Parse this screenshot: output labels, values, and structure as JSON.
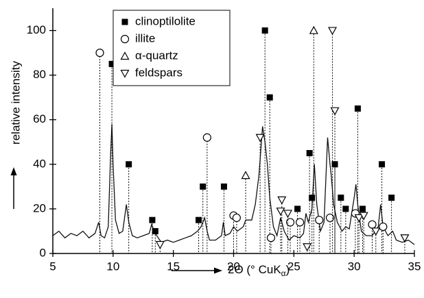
{
  "chart_data": {
    "type": "xrd",
    "xlabel_parts": [
      "2Θ (° CuK",
      "α",
      ")"
    ],
    "ylabel": "relative intensity",
    "xlim": [
      5,
      35
    ],
    "xticks": [
      5,
      10,
      15,
      20,
      25,
      30,
      35
    ],
    "ylim": [
      0,
      110
    ],
    "yticks": [
      0,
      20,
      40,
      60,
      80,
      100
    ],
    "legend": "upper center",
    "pattern": {
      "color": "#111111",
      "x": [
        5,
        5.5,
        6,
        6.5,
        7,
        7.5,
        8,
        8.5,
        8.8,
        9.0,
        9.3,
        9.6,
        9.8,
        9.9,
        10.0,
        10.2,
        10.5,
        10.8,
        11.1,
        11.3,
        11.6,
        12,
        12.5,
        13,
        13.2,
        13.5,
        14,
        14.5,
        15,
        15.5,
        16,
        16.5,
        17,
        17.3,
        17.6,
        17.8,
        18,
        18.5,
        19,
        19.15,
        19.3,
        19.7,
        20,
        20.3,
        20.8,
        21,
        21.5,
        21.8,
        22.1,
        22.4,
        22.6,
        22.8,
        23,
        23.3,
        23.6,
        23.9,
        24.2,
        24.6,
        25,
        25.5,
        25.8,
        26,
        26.2,
        26.5,
        26.7,
        26.9,
        27.2,
        27.5,
        27.8,
        28,
        28.1,
        28.3,
        28.6,
        29,
        29.3,
        29.6,
        30,
        30.15,
        30.3,
        30.6,
        31,
        31.5,
        32,
        32.2,
        32.4,
        32.8,
        33.2,
        33.5,
        34,
        34.5,
        35
      ],
      "values": [
        8,
        10,
        7,
        9,
        8,
        10,
        7,
        9,
        14,
        8,
        7,
        12,
        45,
        58,
        40,
        15,
        9,
        10,
        22,
        14,
        8,
        7,
        8,
        9,
        13,
        9,
        5,
        6,
        5,
        6,
        7,
        8,
        10,
        12,
        16,
        10,
        6,
        6,
        8,
        14,
        8,
        9,
        12,
        10,
        12,
        15,
        15,
        22,
        35,
        57,
        50,
        40,
        25,
        12,
        8,
        16,
        10,
        6,
        8,
        7,
        9,
        18,
        14,
        20,
        40,
        22,
        10,
        14,
        52,
        40,
        35,
        22,
        14,
        10,
        12,
        11,
        25,
        31,
        22,
        10,
        8,
        8,
        12,
        22,
        12,
        8,
        10,
        6,
        5,
        6,
        4
      ]
    },
    "series": [
      {
        "name": "clinoptilolite",
        "marker": "square",
        "color": "#000000",
        "x": [
          9.9,
          11.3,
          13.25,
          13.5,
          17.1,
          17.45,
          19.2,
          22.6,
          23.0,
          25.3,
          26.3,
          26.5,
          28.4,
          28.9,
          29.3,
          30.3,
          30.7,
          32.3,
          33.1
        ],
        "values": [
          85,
          40,
          15,
          10,
          15,
          30,
          30,
          100,
          70,
          20,
          45,
          25,
          40,
          25,
          20,
          65,
          20,
          40,
          25
        ]
      },
      {
        "name": "illite",
        "marker": "circle",
        "color": "#000000",
        "x": [
          8.9,
          17.8,
          20.0,
          20.25,
          23.1,
          24.7,
          25.5,
          27.1,
          28.0,
          30.1,
          31.5,
          32.4
        ],
        "values": [
          90,
          52,
          17,
          16,
          7,
          14,
          14,
          15,
          16,
          18,
          13,
          12
        ]
      },
      {
        "name": "α-quartz",
        "marker": "triangle-up",
        "color": "#000000",
        "x": [
          21.0,
          26.65
        ],
        "values": [
          35,
          100
        ]
      },
      {
        "name": "feldspars",
        "marker": "triangle-down",
        "color": "#000000",
        "x": [
          13.9,
          22.2,
          24.0,
          23.9,
          24.5,
          26.1,
          28.2,
          28.4,
          30.4,
          30.8,
          31.8,
          34.2
        ],
        "values": [
          4,
          52,
          24,
          19,
          18,
          3,
          100,
          64,
          16,
          17,
          10,
          7
        ]
      }
    ]
  }
}
